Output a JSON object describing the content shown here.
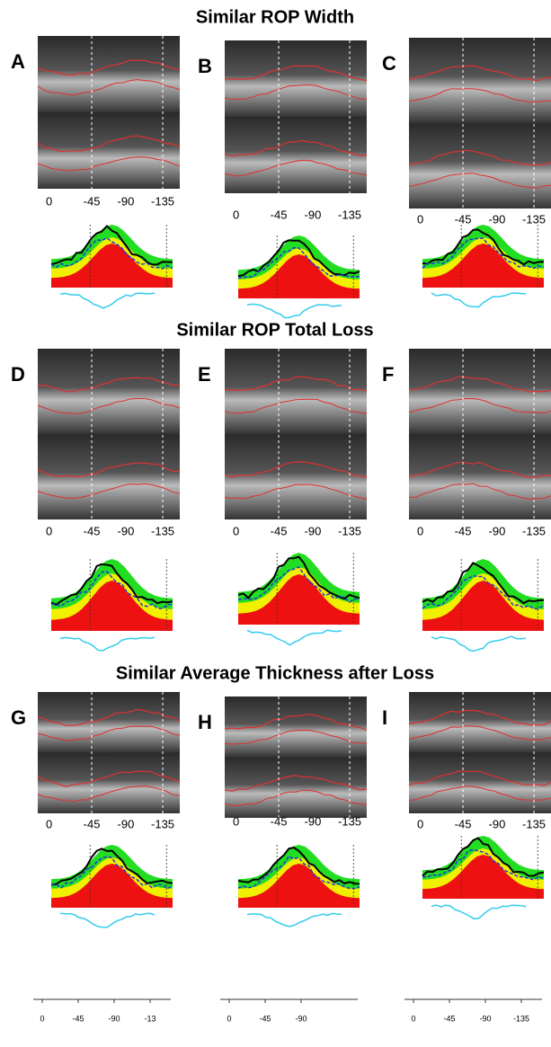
{
  "sections": [
    {
      "title": "Similar ROP Width",
      "panels": [
        {
          "label": "A",
          "ticks": [
            "0",
            "-45",
            "-90",
            "-135"
          ]
        },
        {
          "label": "B",
          "ticks": [
            "0",
            "-45",
            "-90",
            "-135"
          ]
        },
        {
          "label": "C",
          "ticks": [
            "0",
            "-45",
            "-90",
            "-135"
          ]
        }
      ]
    },
    {
      "title": "Similar ROP Total Loss",
      "panels": [
        {
          "label": "D",
          "ticks": [
            "0",
            "-45",
            "-90",
            "-135"
          ]
        },
        {
          "label": "E",
          "ticks": [
            "0",
            "-45",
            "-90",
            "-135"
          ]
        },
        {
          "label": "F",
          "ticks": [
            "0",
            "-45",
            "-90",
            "-135"
          ]
        }
      ]
    },
    {
      "title": "Similar Average Thickness after Loss",
      "panels": [
        {
          "label": "G",
          "ticks": [
            "0",
            "-45",
            "-90",
            "-135"
          ],
          "bottom_ticks": [
            "0",
            "-45",
            "-90",
            "-13"
          ]
        },
        {
          "label": "H",
          "ticks": [
            "0",
            "-45",
            "-90",
            "-135"
          ],
          "bottom_ticks": [
            "0",
            "-45",
            "-90"
          ]
        },
        {
          "label": "I",
          "ticks": [
            "0",
            "-45",
            "-90",
            "-135"
          ],
          "bottom_ticks": [
            "0",
            "-45",
            "-90",
            "-135"
          ]
        }
      ]
    }
  ]
}
